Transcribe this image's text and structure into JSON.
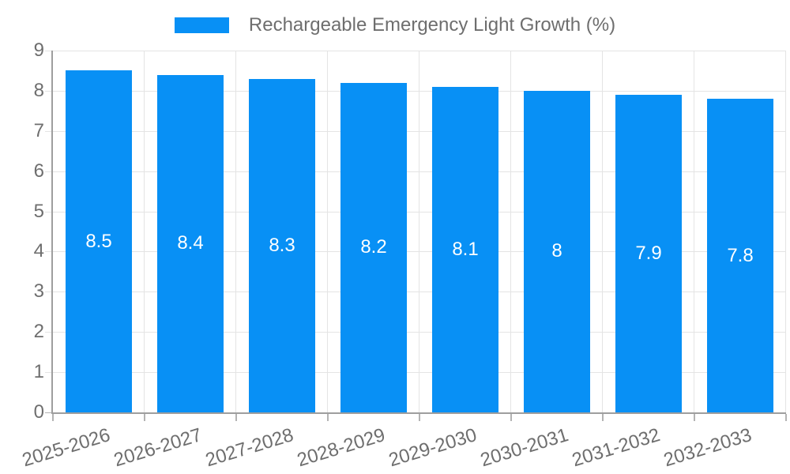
{
  "chart_data": {
    "type": "bar",
    "title": "Rechargeable Emergency Light Growth (%)",
    "categories": [
      "2025-2026",
      "2026-2027",
      "2027-2028",
      "2028-2029",
      "2029-2030",
      "2030-2031",
      "2031-2032",
      "2032-2033"
    ],
    "values": [
      8.5,
      8.4,
      8.3,
      8.2,
      8.1,
      8,
      7.9,
      7.8
    ],
    "bar_labels": [
      "8.5",
      "8.4",
      "8.3",
      "8.2",
      "8.1",
      "8",
      "7.9",
      "7.8"
    ],
    "xlabel": "",
    "ylabel": "",
    "ylim": [
      0,
      9
    ],
    "y_ticks": [
      0,
      1,
      2,
      3,
      4,
      5,
      6,
      7,
      8,
      9
    ],
    "grid": true,
    "legend_position": "top",
    "colors": {
      "bar": "#0890f5",
      "grid": "#e4e4e4",
      "axis": "#9e9e9e",
      "tick": "#b3b3b3",
      "axis_text": "#6e6e6e",
      "bar_label_text": "#ffffff",
      "background": "#ffffff"
    }
  }
}
